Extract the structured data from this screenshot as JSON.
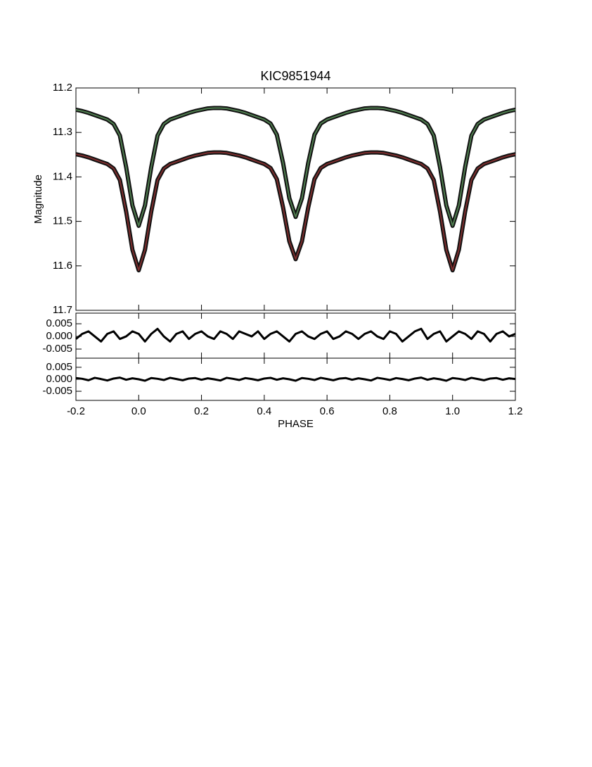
{
  "chart_data": [
    {
      "type": "line",
      "title": "KIC9851944",
      "ylabel": "Magnitude",
      "x": [
        -0.2,
        -0.18,
        -0.16,
        -0.14,
        -0.12,
        -0.1,
        -0.08,
        -0.06,
        -0.04,
        -0.02,
        0,
        0.02,
        0.04,
        0.06,
        0.08,
        0.1,
        0.12,
        0.14,
        0.16,
        0.18,
        0.2,
        0.22,
        0.24,
        0.26,
        0.28,
        0.3,
        0.32,
        0.34,
        0.36,
        0.38,
        0.4,
        0.42,
        0.44,
        0.46,
        0.48,
        0.5,
        0.52,
        0.54,
        0.56,
        0.58,
        0.6,
        0.62,
        0.64,
        0.66,
        0.68,
        0.7,
        0.72,
        0.74,
        0.76,
        0.78,
        0.8,
        0.82,
        0.84,
        0.86,
        0.88,
        0.9,
        0.92,
        0.94,
        0.96,
        0.98,
        1,
        1.02,
        1.04,
        1.06,
        1.08,
        1.1,
        1.12,
        1.14,
        1.16,
        1.18,
        1.2
      ],
      "series": [
        {
          "color": "#4f7d4f",
          "values": [
            11.249,
            11.252,
            11.256,
            11.261,
            11.266,
            11.271,
            11.281,
            11.307,
            11.378,
            11.464,
            11.51,
            11.464,
            11.378,
            11.307,
            11.281,
            11.271,
            11.266,
            11.261,
            11.256,
            11.252,
            11.249,
            11.246,
            11.245,
            11.245,
            11.246,
            11.249,
            11.252,
            11.256,
            11.261,
            11.266,
            11.271,
            11.28,
            11.305,
            11.369,
            11.448,
            11.49,
            11.448,
            11.369,
            11.305,
            11.28,
            11.271,
            11.266,
            11.261,
            11.256,
            11.252,
            11.249,
            11.246,
            11.245,
            11.245,
            11.246,
            11.249,
            11.252,
            11.256,
            11.261,
            11.266,
            11.271,
            11.281,
            11.307,
            11.378,
            11.464,
            11.51,
            11.464,
            11.378,
            11.307,
            11.281,
            11.271,
            11.266,
            11.261,
            11.256,
            11.252,
            11.249
          ]
        },
        {
          "color": "#7d2e2e",
          "values": [
            11.349,
            11.352,
            11.356,
            11.361,
            11.366,
            11.371,
            11.381,
            11.407,
            11.478,
            11.564,
            11.61,
            11.564,
            11.478,
            11.407,
            11.381,
            11.371,
            11.366,
            11.361,
            11.356,
            11.352,
            11.349,
            11.346,
            11.345,
            11.345,
            11.346,
            11.349,
            11.352,
            11.356,
            11.361,
            11.366,
            11.371,
            11.38,
            11.405,
            11.469,
            11.545,
            11.585,
            11.545,
            11.469,
            11.405,
            11.38,
            11.371,
            11.366,
            11.361,
            11.356,
            11.352,
            11.349,
            11.346,
            11.345,
            11.345,
            11.346,
            11.349,
            11.352,
            11.356,
            11.361,
            11.366,
            11.371,
            11.381,
            11.407,
            11.478,
            11.564,
            11.61,
            11.564,
            11.478,
            11.407,
            11.381,
            11.371,
            11.366,
            11.361,
            11.356,
            11.352,
            11.349
          ]
        }
      ],
      "xlim": [
        -0.2,
        1.2
      ],
      "xticks": [
        -0.2,
        0,
        0.2,
        0.4,
        0.6,
        0.8,
        1,
        1.2
      ],
      "ylim": [
        11.7,
        11.2
      ],
      "yticks": [
        11.2,
        11.3,
        11.4,
        11.5,
        11.6,
        11.7
      ]
    },
    {
      "type": "line",
      "x": [
        -0.2,
        -0.18,
        -0.16,
        -0.14,
        -0.12,
        -0.1,
        -0.08,
        -0.06,
        -0.04,
        -0.02,
        0,
        0.02,
        0.04,
        0.06,
        0.08,
        0.1,
        0.12,
        0.14,
        0.16,
        0.18,
        0.2,
        0.22,
        0.24,
        0.26,
        0.28,
        0.3,
        0.32,
        0.34,
        0.36,
        0.38,
        0.4,
        0.42,
        0.44,
        0.46,
        0.48,
        0.5,
        0.52,
        0.54,
        0.56,
        0.58,
        0.6,
        0.62,
        0.64,
        0.66,
        0.68,
        0.7,
        0.72,
        0.74,
        0.76,
        0.78,
        0.8,
        0.82,
        0.84,
        0.86,
        0.88,
        0.9,
        0.92,
        0.94,
        0.96,
        0.98,
        1,
        1.02,
        1.04,
        1.06,
        1.08,
        1.1,
        1.12,
        1.14,
        1.16,
        1.18,
        1.2
      ],
      "series": [
        {
          "color": "#000000",
          "values": [
            -0.001,
            0.001,
            0.002,
            0.0,
            -0.002,
            0.001,
            0.002,
            -0.001,
            0.0,
            0.002,
            0.001,
            -0.002,
            0.001,
            0.003,
            0.0,
            -0.002,
            0.001,
            0.002,
            -0.001,
            0.001,
            0.002,
            0.0,
            -0.001,
            0.002,
            0.001,
            -0.001,
            0.002,
            0.001,
            0.0,
            0.002,
            -0.001,
            0.001,
            0.002,
            0.0,
            -0.002,
            0.001,
            0.002,
            0.0,
            -0.001,
            0.001,
            0.002,
            -0.001,
            0.0,
            0.002,
            0.001,
            -0.001,
            0.001,
            0.002,
            0.0,
            -0.001,
            0.002,
            0.001,
            -0.002,
            0.0,
            0.002,
            0.003,
            -0.001,
            0.001,
            0.002,
            -0.002,
            0.0,
            0.002,
            0.001,
            -0.001,
            0.002,
            0.001,
            -0.002,
            0.001,
            0.002,
            0.0,
            0.001
          ]
        }
      ],
      "xlim": [
        -0.2,
        1.2
      ],
      "xticks": [
        -0.2,
        0,
        0.2,
        0.4,
        0.6,
        0.8,
        1,
        1.2
      ],
      "ylim": [
        -0.0086,
        0.0092
      ],
      "yticks": [
        0.005,
        {
          "value": 0,
          "label": "0.000"
        },
        -0.005
      ]
    },
    {
      "type": "line",
      "xlabel": "PHASE",
      "x": [
        -0.2,
        -0.18,
        -0.16,
        -0.14,
        -0.12,
        -0.1,
        -0.08,
        -0.06,
        -0.04,
        -0.02,
        0,
        0.02,
        0.04,
        0.06,
        0.08,
        0.1,
        0.12,
        0.14,
        0.16,
        0.18,
        0.2,
        0.22,
        0.24,
        0.26,
        0.28,
        0.3,
        0.32,
        0.34,
        0.36,
        0.38,
        0.4,
        0.42,
        0.44,
        0.46,
        0.48,
        0.5,
        0.52,
        0.54,
        0.56,
        0.58,
        0.6,
        0.62,
        0.64,
        0.66,
        0.68,
        0.7,
        0.72,
        0.74,
        0.76,
        0.78,
        0.8,
        0.82,
        0.84,
        0.86,
        0.88,
        0.9,
        0.92,
        0.94,
        0.96,
        0.98,
        1,
        1.02,
        1.04,
        1.06,
        1.08,
        1.1,
        1.12,
        1.14,
        1.16,
        1.18,
        1.2
      ],
      "series": [
        {
          "color": "#000000",
          "values": [
            0.0005,
            0.0002,
            -0.0004,
            0.0006,
            0.0001,
            -0.0005,
            0.0003,
            0.0007,
            -0.0002,
            0.0004,
            0.0,
            -0.0006,
            0.0005,
            0.0002,
            -0.0003,
            0.0006,
            0.0001,
            -0.0004,
            0.0003,
            0.0005,
            -0.0002,
            0.0004,
            0.0,
            -0.0005,
            0.0006,
            0.0002,
            -0.0003,
            0.0005,
            0.0001,
            -0.0004,
            0.0003,
            0.0006,
            -0.0002,
            0.0004,
            0.0,
            -0.0006,
            0.0005,
            0.0002,
            -0.0003,
            0.0006,
            0.0001,
            -0.0004,
            0.0003,
            0.0005,
            -0.0002,
            0.0004,
            0.0,
            -0.0005,
            0.0006,
            0.0002,
            -0.0003,
            0.0005,
            0.0001,
            -0.0004,
            0.0003,
            0.0007,
            -0.0002,
            0.0004,
            0.0,
            -0.0006,
            0.0005,
            0.0002,
            -0.0003,
            0.0006,
            0.0001,
            -0.0004,
            0.0003,
            0.0005,
            -0.0002,
            0.0004,
            0.0001
          ]
        }
      ],
      "xlim": [
        -0.2,
        1.2
      ],
      "xticks": [
        -0.2,
        {
          "value": 0,
          "label": "0.0"
        },
        0.2,
        0.4,
        0.6,
        0.8,
        {
          "value": 1,
          "label": "1.0"
        },
        1.2
      ],
      "ylim": [
        -0.0088,
        0.0088
      ],
      "yticks": [
        0.005,
        {
          "value": 0,
          "label": "0.000"
        },
        -0.005
      ]
    }
  ]
}
